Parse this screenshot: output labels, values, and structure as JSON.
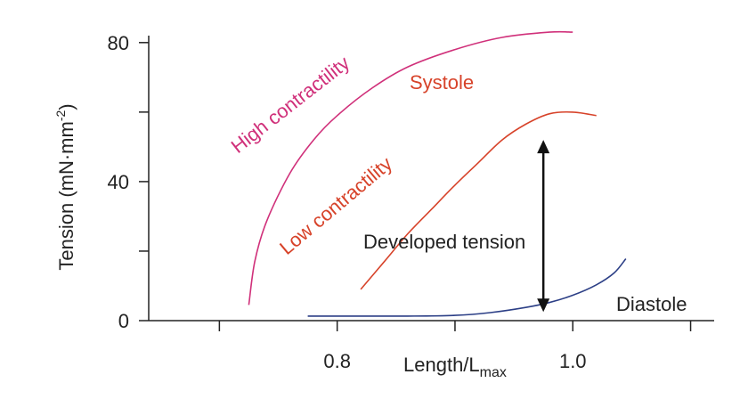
{
  "chart_data": {
    "type": "line",
    "title": "",
    "xlabel": {
      "main": "Length/L",
      "sub": "max"
    },
    "ylabel": {
      "main": "Tension (mN·mm",
      "sup": "-2",
      "end": ")"
    },
    "xlim": [
      0.64,
      1.12
    ],
    "ylim": [
      0,
      82
    ],
    "x_ticks": [
      0.7,
      0.8,
      0.9,
      1.0,
      1.1
    ],
    "x_tick_labels": [
      "",
      "0.8",
      "",
      "1.0",
      ""
    ],
    "y_ticks": [
      0,
      20,
      40,
      60,
      80
    ],
    "y_tick_labels": [
      "0",
      "",
      "40",
      "",
      "80"
    ],
    "grid": false,
    "series": [
      {
        "name": "High contractility",
        "color": "#d0307a",
        "x": [
          0.725,
          0.73,
          0.74,
          0.76,
          0.78,
          0.8,
          0.83,
          0.86,
          0.9,
          0.94,
          0.98,
          1.0
        ],
        "y": [
          4.5,
          17,
          28.5,
          42.5,
          52,
          59,
          67,
          73,
          78,
          81.5,
          83,
          83
        ]
      },
      {
        "name": "Low contractility",
        "color": "#d7432a",
        "x": [
          0.82,
          0.84,
          0.86,
          0.88,
          0.9,
          0.92,
          0.94,
          0.96,
          0.98,
          1.0,
          1.02
        ],
        "y": [
          9,
          17,
          25,
          32,
          39,
          45.5,
          52,
          56.5,
          59.5,
          60,
          59
        ]
      },
      {
        "name": "Diastole",
        "color": "#2c3f86",
        "x": [
          0.775,
          0.82,
          0.86,
          0.9,
          0.93,
          0.96,
          0.98,
          1.0,
          1.02,
          1.035,
          1.045
        ],
        "y": [
          1.3,
          1.3,
          1.3,
          1.5,
          2.3,
          3.8,
          5.2,
          7.3,
          10.3,
          13.7,
          17.8
        ]
      }
    ],
    "annotations": [
      {
        "key": "high",
        "text": "High contractility",
        "color": "#d0307a"
      },
      {
        "key": "systole",
        "text": "Systole",
        "color": "#d7432a"
      },
      {
        "key": "low",
        "text": "Low contractility",
        "color": "#d7432a"
      },
      {
        "key": "developed",
        "text": "Developed tension",
        "color": "#222222"
      },
      {
        "key": "diastole",
        "text": "Diastole",
        "color": "#222222"
      }
    ],
    "arrow": {
      "x": 0.975,
      "y_from": 2.5,
      "y_to": 52,
      "color": "#111111"
    }
  }
}
